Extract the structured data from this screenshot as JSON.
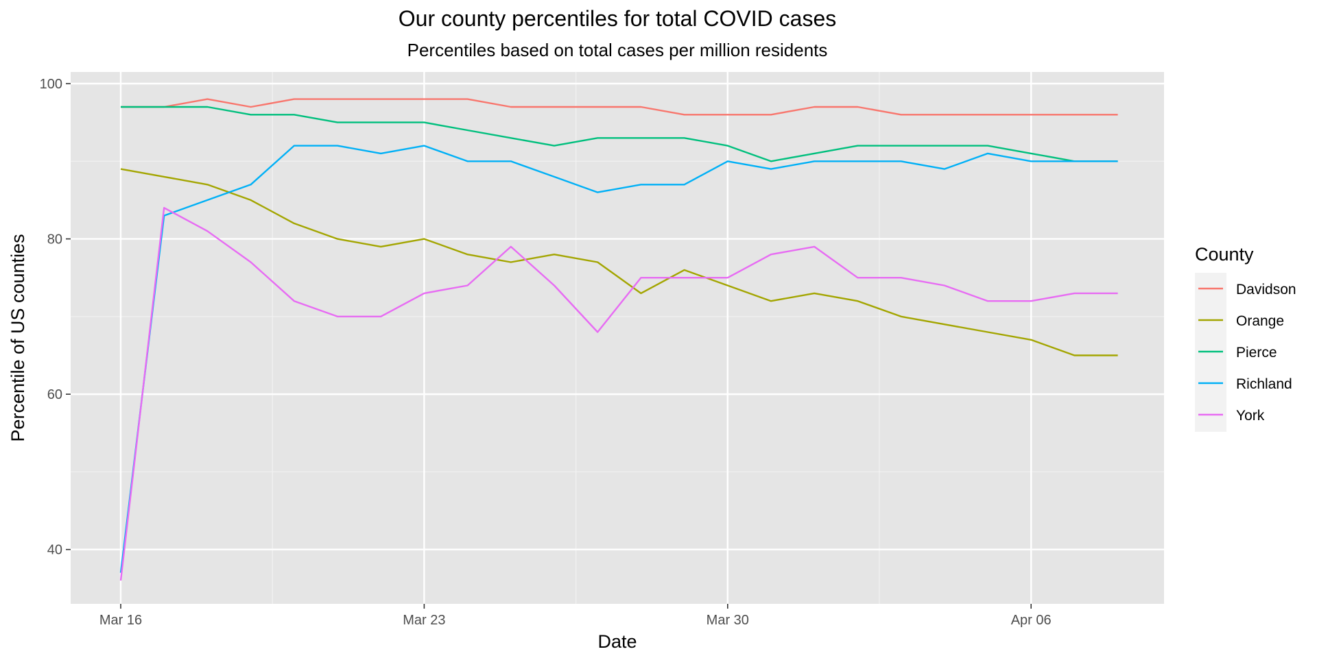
{
  "chart_data": {
    "type": "line",
    "title": "Our county percentiles for total COVID cases",
    "subtitle": "Percentiles based on total cases per million residents",
    "xlabel": "Date",
    "ylabel": "Percentile of US counties",
    "x": [
      "Mar 16",
      "Mar 17",
      "Mar 18",
      "Mar 19",
      "Mar 20",
      "Mar 21",
      "Mar 22",
      "Mar 23",
      "Mar 24",
      "Mar 25",
      "Mar 26",
      "Mar 27",
      "Mar 28",
      "Mar 29",
      "Mar 30",
      "Mar 31",
      "Apr 01",
      "Apr 02",
      "Apr 03",
      "Apr 04",
      "Apr 05",
      "Apr 06",
      "Apr 07",
      "Apr 08"
    ],
    "x_ticks": [
      {
        "index": 0,
        "label": "Mar 16"
      },
      {
        "index": 7,
        "label": "Mar 23"
      },
      {
        "index": 14,
        "label": "Mar 30"
      },
      {
        "index": 21,
        "label": "Apr 06"
      }
    ],
    "xlim": [
      "Mar 15",
      "Apr 09"
    ],
    "y_ticks": [
      40,
      60,
      80,
      100
    ],
    "ylim": [
      33,
      101.5
    ],
    "grid": true,
    "background": "#e5e5e5",
    "legend": {
      "title": "County",
      "position": "right"
    },
    "series": [
      {
        "name": "Davidson",
        "color": "#f8766d",
        "values": [
          97,
          97,
          98,
          97,
          98,
          98,
          98,
          98,
          98,
          97,
          97,
          97,
          97,
          96,
          96,
          96,
          97,
          97,
          96,
          96,
          96,
          96,
          96,
          96
        ]
      },
      {
        "name": "Orange",
        "color": "#a3a500",
        "values": [
          89,
          88,
          87,
          85,
          82,
          80,
          79,
          80,
          78,
          77,
          78,
          77,
          73,
          76,
          74,
          72,
          73,
          72,
          70,
          69,
          68,
          67,
          65,
          65
        ]
      },
      {
        "name": "Pierce",
        "color": "#00bf7d",
        "values": [
          97,
          97,
          97,
          96,
          96,
          95,
          95,
          95,
          94,
          93,
          92,
          93,
          93,
          93,
          92,
          90,
          91,
          92,
          92,
          92,
          92,
          91,
          90,
          90
        ]
      },
      {
        "name": "Richland",
        "color": "#00b0f6",
        "values": [
          37,
          83,
          85,
          87,
          92,
          92,
          91,
          92,
          90,
          90,
          88,
          86,
          87,
          87,
          90,
          89,
          90,
          90,
          90,
          89,
          91,
          90,
          90,
          90
        ]
      },
      {
        "name": "York",
        "color": "#e76bf3",
        "values": [
          36,
          84,
          81,
          77,
          72,
          70,
          70,
          73,
          74,
          79,
          74,
          68,
          75,
          75,
          75,
          78,
          79,
          75,
          75,
          74,
          72,
          72,
          73,
          73
        ]
      }
    ]
  }
}
